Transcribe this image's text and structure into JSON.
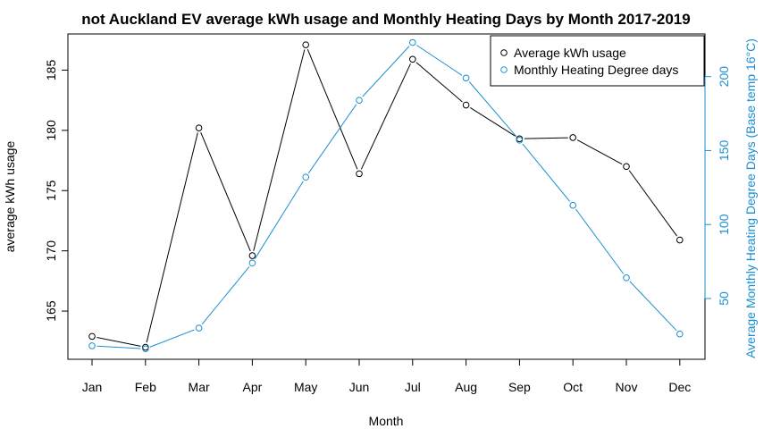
{
  "chart_data": {
    "type": "line",
    "title": "not Auckland EV average kWh usage and Monthly Heating Days by Month 2017-2019",
    "xlabel": "Month",
    "ylabel": "average kWh usage",
    "y2label": "Average Monthly Heating Degree Days (Base temp 16°C)",
    "categories": [
      "Jan",
      "Feb",
      "Mar",
      "Apr",
      "May",
      "Jun",
      "Jul",
      "Aug",
      "Sep",
      "Oct",
      "Nov",
      "Dec"
    ],
    "y_ticks": [
      165,
      170,
      175,
      180,
      185
    ],
    "y2_ticks": [
      50,
      100,
      150,
      200
    ],
    "ylim": [
      161.0,
      188.0
    ],
    "y2lim": [
      8.9,
      228.8
    ],
    "legend_position": "top-right",
    "series": [
      {
        "name": "Average kWh usage",
        "axis": "left",
        "color": "#000000",
        "values": [
          162.9,
          162.0,
          180.2,
          169.6,
          187.1,
          176.4,
          185.9,
          182.1,
          179.3,
          179.4,
          177.0,
          170.9
        ]
      },
      {
        "name": "Monthly Heating Degree days",
        "axis": "right",
        "color": "#1a8fd0",
        "values": [
          18,
          16,
          30,
          74,
          132,
          184,
          223,
          199,
          157,
          113,
          64,
          26
        ]
      }
    ]
  }
}
